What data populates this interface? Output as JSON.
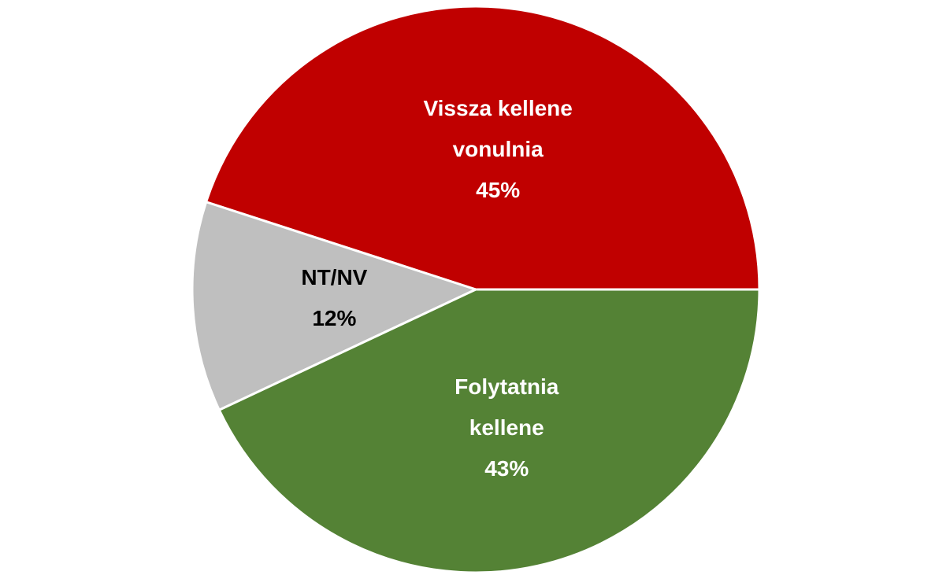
{
  "chart_data": {
    "type": "pie",
    "categories": [
      "Vissza kellene vonulnia",
      "NT/NV",
      "Folytatnia kellene"
    ],
    "values": [
      45,
      12,
      43
    ],
    "value_labels": [
      "45%",
      "12%",
      "43%"
    ],
    "colors": [
      "#c00000",
      "#bfbfbf",
      "#548235"
    ],
    "label_colors": [
      "#ffffff",
      "#000000",
      "#ffffff"
    ]
  }
}
